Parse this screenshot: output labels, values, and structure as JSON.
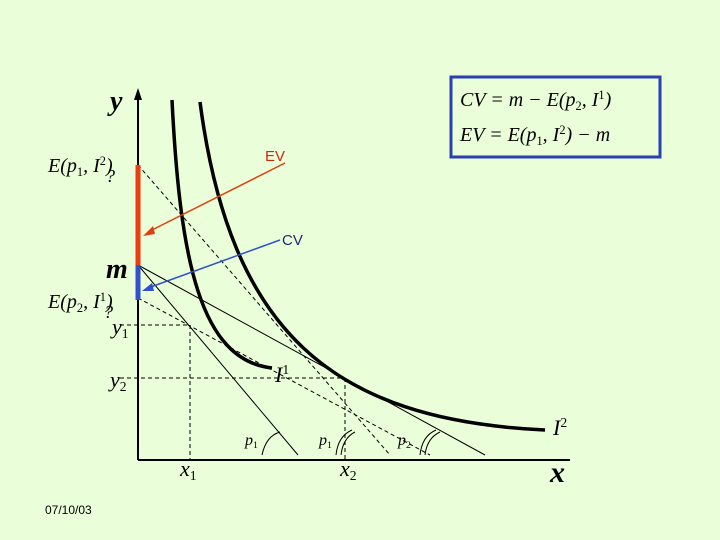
{
  "axis_labels": {
    "y": [
      {
        "text": "y"
      }
    ],
    "x": [
      {
        "text": "x"
      }
    ]
  },
  "left_labels": {
    "e_p1_i2": [
      {
        "text": "E(p"
      },
      {
        "sub": "1"
      },
      {
        "text": ", I"
      },
      {
        "sup": "2"
      },
      {
        "text": ")"
      }
    ],
    "question_ev": [
      {
        "text": "?"
      }
    ],
    "m": [
      {
        "text": "m"
      }
    ],
    "e_p2_i1": [
      {
        "text": "E(p"
      },
      {
        "sub": "2"
      },
      {
        "text": ", I"
      },
      {
        "sup": "1"
      },
      {
        "text": ")"
      }
    ],
    "question_cv": [
      {
        "text": "?"
      }
    ],
    "y1": [
      {
        "text": "y"
      },
      {
        "sub": "1"
      }
    ],
    "y2": [
      {
        "text": "y"
      },
      {
        "sub": "2"
      }
    ]
  },
  "arrows": {
    "ev": "EV",
    "cv": "CV"
  },
  "curve_labels": {
    "i1": [
      {
        "text": "I"
      },
      {
        "sup": "1"
      }
    ],
    "i2": [
      {
        "text": "I"
      },
      {
        "sup": "2"
      }
    ]
  },
  "price_labels": [
    [
      {
        "text": "p"
      },
      {
        "sub": "1"
      }
    ],
    [
      {
        "text": "p"
      },
      {
        "sub": "1"
      }
    ],
    [
      {
        "text": "p"
      },
      {
        "sub": "2"
      }
    ]
  ],
  "x_labels": {
    "x1": [
      {
        "text": "x"
      },
      {
        "sub": "1"
      }
    ],
    "x2": [
      {
        "text": "x"
      },
      {
        "sub": "2"
      }
    ]
  },
  "formulas": {
    "cv": [
      {
        "text": "CV = m − E(p"
      },
      {
        "sub": "2"
      },
      {
        "text": ", I"
      },
      {
        "sup": "1"
      },
      {
        "text": ")"
      }
    ],
    "ev": [
      {
        "text": "EV = E(p"
      },
      {
        "sub": "1"
      },
      {
        "text": ", I"
      },
      {
        "sup": "2"
      },
      {
        "text": ") − m"
      }
    ]
  },
  "footer": {
    "date": "07/10/03"
  }
}
